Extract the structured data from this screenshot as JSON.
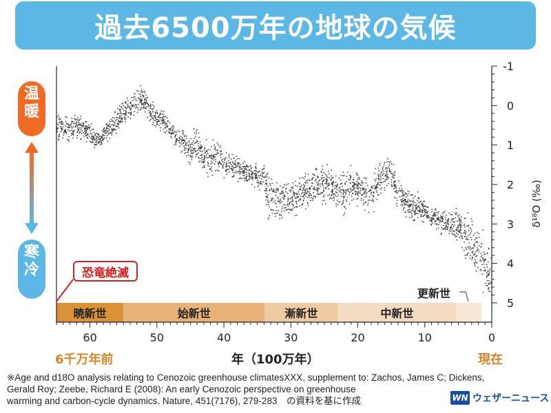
{
  "title": "過去6500万年の地球の気候",
  "side": {
    "warm_chars": [
      "温",
      "暖"
    ],
    "cold_chars": [
      "寒",
      "冷"
    ]
  },
  "annotation": "恐竜絶滅",
  "epochs": [
    {
      "name": "暁新世",
      "start": 65,
      "end": 55,
      "color": "#d99238"
    },
    {
      "name": "始新世",
      "start": 55,
      "end": 33.9,
      "color": "#e7b27a"
    },
    {
      "name": "漸新世",
      "start": 33.9,
      "end": 23,
      "color": "#efcba3"
    },
    {
      "name": "中新世",
      "start": 23,
      "end": 5.3,
      "color": "#f4dcc3"
    },
    {
      "name": "",
      "start": 5.3,
      "end": 1.5,
      "color": "#f8e8d8"
    }
  ],
  "pleistocene_label": "更新世",
  "colors": {
    "title_bg": "#5cb7e4",
    "warm": "#ef6a25",
    "cold": "#5cb7e4",
    "accent": "#d8852a",
    "data": "#1a1a1a"
  },
  "chart_data": {
    "type": "scatter",
    "title": "",
    "xlabel": "年（100万年）",
    "ylabel": "δ¹⁸O (‰)",
    "x_end_left": "6千万年前",
    "x_end_right": "現在",
    "xlim": [
      65,
      0
    ],
    "ylim": [
      -1,
      5
    ],
    "y_inverted": true,
    "x_ticks": [
      "60",
      "50",
      "40",
      "30",
      "20",
      "10",
      "0"
    ],
    "y_ticks": [
      "-1",
      "0",
      "1",
      "2",
      "3",
      "4",
      "5"
    ],
    "series": [
      {
        "x": [
          65,
          64,
          63,
          62,
          61,
          60,
          59,
          58,
          57,
          56,
          55,
          54,
          53,
          52,
          51,
          50,
          49,
          48,
          47,
          46,
          45,
          44,
          43,
          42,
          41,
          40,
          39,
          38,
          37,
          36,
          35,
          34,
          33.5,
          33,
          32,
          31,
          30,
          29,
          28,
          27,
          26,
          25,
          24,
          23,
          22,
          21,
          20,
          19,
          18,
          17,
          16,
          15,
          14,
          13,
          12,
          11,
          10,
          9,
          8,
          7,
          6,
          5,
          4,
          3,
          2,
          1,
          0.5,
          0
        ],
        "y": [
          0.6,
          0.55,
          0.6,
          0.5,
          0.55,
          0.75,
          0.9,
          0.8,
          0.6,
          0.35,
          0.2,
          0.1,
          -0.1,
          -0.15,
          0.1,
          0.3,
          0.4,
          0.6,
          0.8,
          0.95,
          1.1,
          0.9,
          1.3,
          1.4,
          1.2,
          1.5,
          1.55,
          1.6,
          1.65,
          1.7,
          1.8,
          1.85,
          2.3,
          2.35,
          2.4,
          2.3,
          2.35,
          2.3,
          2.2,
          2.15,
          2.0,
          1.95,
          2.05,
          2.2,
          2.25,
          2.0,
          2.1,
          2.2,
          2.3,
          1.95,
          1.75,
          1.7,
          2.2,
          2.4,
          2.55,
          2.6,
          2.7,
          2.8,
          2.9,
          2.95,
          3.0,
          3.1,
          3.3,
          3.5,
          3.8,
          4.1,
          4.4,
          4.6
        ],
        "spread": [
          0.25,
          0.2,
          0.2,
          0.2,
          0.2,
          0.2,
          0.15,
          0.15,
          0.2,
          0.2,
          0.25,
          0.25,
          0.25,
          0.2,
          0.2,
          0.2,
          0.2,
          0.2,
          0.2,
          0.2,
          0.25,
          0.3,
          0.3,
          0.3,
          0.25,
          0.25,
          0.2,
          0.2,
          0.2,
          0.2,
          0.2,
          0.25,
          0.45,
          0.3,
          0.35,
          0.35,
          0.3,
          0.3,
          0.3,
          0.3,
          0.3,
          0.3,
          0.3,
          0.35,
          0.35,
          0.3,
          0.3,
          0.35,
          0.35,
          0.3,
          0.3,
          0.3,
          0.3,
          0.25,
          0.25,
          0.25,
          0.2,
          0.2,
          0.2,
          0.2,
          0.25,
          0.3,
          0.35,
          0.4,
          0.45,
          0.5,
          0.55,
          0.55
        ]
      }
    ]
  },
  "source": {
    "line1": "※Age and d18O analysis relating to Cenozoic greenhouse climatesXXX, supplement to: Zachos, James C; Dickens,",
    "line2": "Gerald Roy; Zeebe, Richard E (2008): An early Cenozoic perspective on greenhouse",
    "line3": "warming and carbon-cycle dynamics. Nature, 451(7176), 279-283　の資料を基に作成"
  },
  "brand": {
    "logo": "WN",
    "name": "ウェザーニュース"
  }
}
